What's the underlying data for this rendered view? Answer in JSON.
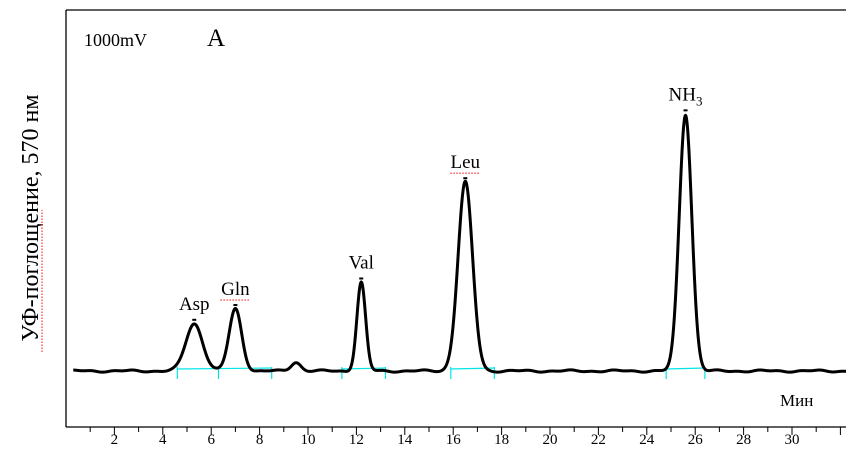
{
  "chart_data": {
    "type": "line",
    "scale_label": "1000mV",
    "panel_label": "A",
    "ylabel": "УФ-поглощение, 570 нм",
    "xlabel": "Мин",
    "xlim": [
      0,
      32.5
    ],
    "ylim": [
      0,
      100
    ],
    "x_ticks": [
      2,
      4,
      6,
      8,
      10,
      12,
      14,
      16,
      18,
      20,
      22,
      24,
      26,
      28,
      30
    ],
    "baseline": 1,
    "peaks": [
      {
        "label": "Asp",
        "label_base": "Asp",
        "label_sub": "",
        "x": 5.3,
        "height": 16,
        "width": 0.35
      },
      {
        "label": "Gln",
        "label_base": "Gln",
        "label_sub": "",
        "x": 7.0,
        "height": 21,
        "width": 0.26
      },
      {
        "label": "",
        "label_base": "",
        "label_sub": "",
        "x": 9.5,
        "height": 3,
        "width": 0.2
      },
      {
        "label": "Val",
        "label_base": "Val",
        "label_sub": "",
        "x": 12.2,
        "height": 30,
        "width": 0.18
      },
      {
        "label": "Leu",
        "label_base": "Leu",
        "label_sub": "",
        "x": 16.5,
        "height": 64,
        "width": 0.3
      },
      {
        "label": "NH3",
        "label_base": "NH",
        "label_sub": "3",
        "x": 25.6,
        "height": 87,
        "width": 0.26
      }
    ],
    "grid": false,
    "line_color": "#000000",
    "integration_marker_color": "#00e5e5"
  }
}
